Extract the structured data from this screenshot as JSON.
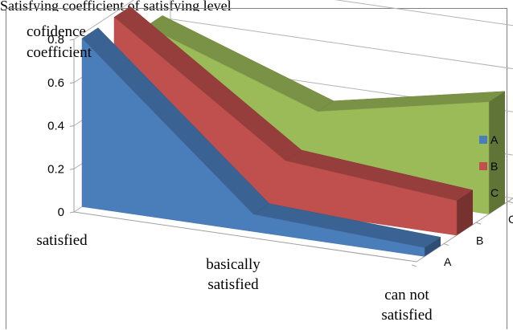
{
  "caption": "Satisfying coefficient of satisfying level",
  "chart_data": {
    "type": "area",
    "subtype": "3d-area",
    "title": "",
    "ylabel": "cofidence coefficient",
    "ylabel_lines": [
      "cofidence",
      "coefficient"
    ],
    "categories": [
      "satisfied",
      "basically satisfied",
      "can not satisfied"
    ],
    "category_labels": [
      [
        "satisfied"
      ],
      [
        "basically",
        "satisfied"
      ],
      [
        "can not",
        "satisfied"
      ]
    ],
    "y_ticks": [
      "0",
      "0.2",
      "0.4",
      "0.6",
      "0.8"
    ],
    "ylim": [
      0,
      0.8
    ],
    "depth_labels": [
      "A",
      "B",
      "C"
    ],
    "series": [
      {
        "name": "A",
        "values": [
          0.78,
          0.08,
          0.04
        ],
        "color": "#4a7ebb"
      },
      {
        "name": "B",
        "values": [
          0.78,
          0.23,
          0.16
        ],
        "color": "#c0504d"
      },
      {
        "name": "C",
        "values": [
          0.64,
          0.36,
          0.52
        ],
        "color": "#9bbb59"
      }
    ],
    "legend": {
      "position": "right",
      "entries": [
        "A",
        "B",
        "C"
      ]
    },
    "grid": true
  }
}
